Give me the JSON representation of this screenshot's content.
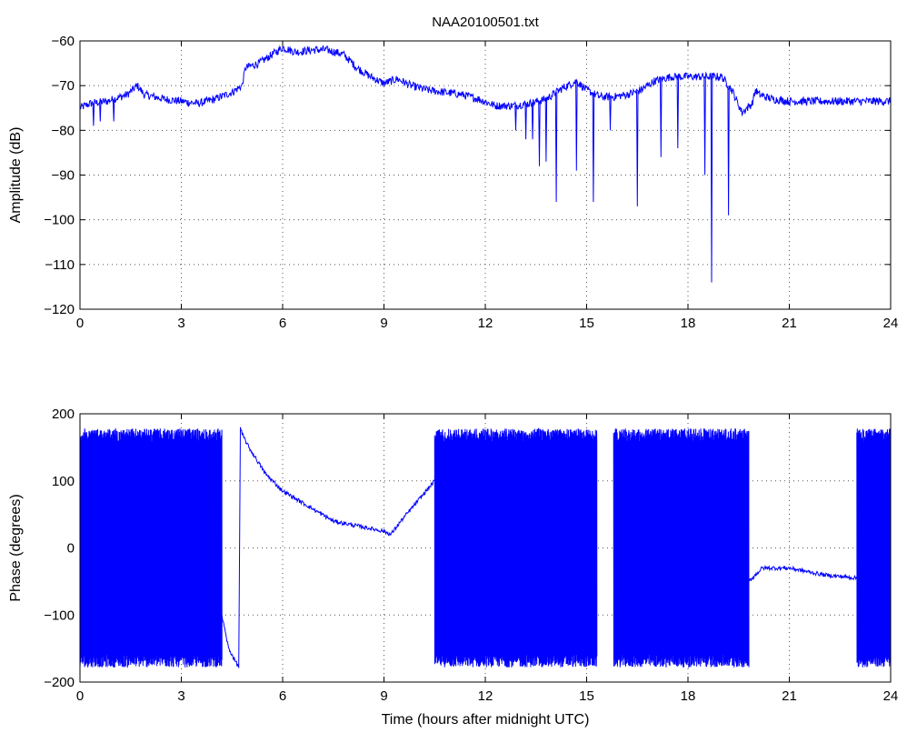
{
  "chart_data": [
    {
      "type": "line",
      "title": "NAA20100501.txt",
      "xlabel": "",
      "ylabel": "Amplitude (dB)",
      "xlim": [
        0,
        24
      ],
      "ylim": [
        -120,
        -60
      ],
      "xticks": [
        "0",
        "3",
        "6",
        "9",
        "12",
        "15",
        "18",
        "21",
        "24"
      ],
      "yticks": [
        "-120",
        "-110",
        "-100",
        "-90",
        "-80",
        "-70",
        "-60"
      ],
      "grid": true,
      "line_color": "#0000ff",
      "series": [
        {
          "name": "",
          "x": [
            0.0,
            0.3,
            0.8,
            1.4,
            1.7,
            1.9,
            2.5,
            3.0,
            3.5,
            4.0,
            4.5,
            4.8,
            4.9,
            5.3,
            5.7,
            6.0,
            6.4,
            6.9,
            7.3,
            7.8,
            8.2,
            8.6,
            9.0,
            9.4,
            9.8,
            10.3,
            10.8,
            11.3,
            11.8,
            12.3,
            12.8,
            13.3,
            13.8,
            14.3,
            14.7,
            15.0,
            15.4,
            15.8,
            16.2,
            16.6,
            17.0,
            17.5,
            18.0,
            18.5,
            19.0,
            19.3,
            19.6,
            19.9,
            20.0,
            20.1,
            20.5,
            21.0,
            22.0,
            23.0,
            24.0
          ],
          "y": [
            -75,
            -74,
            -73.5,
            -72,
            -70,
            -72,
            -73,
            -73.5,
            -74,
            -73,
            -71.5,
            -70,
            -66,
            -65,
            -63,
            -61.5,
            -62.5,
            -62,
            -62,
            -63,
            -66,
            -68,
            -69.5,
            -68.5,
            -70,
            -71,
            -71.5,
            -72,
            -73,
            -74.5,
            -74.5,
            -74,
            -73,
            -70.5,
            -69,
            -71,
            -72.5,
            -72.5,
            -72,
            -71,
            -69,
            -68,
            -68,
            -68,
            -68,
            -71,
            -76,
            -74,
            -71,
            -72,
            -73,
            -73.5,
            -73.5,
            -73.5,
            -73.5
          ]
        }
      ],
      "spikes": [
        {
          "x": 0.4,
          "y": -79
        },
        {
          "x": 0.6,
          "y": -78
        },
        {
          "x": 1.0,
          "y": -78
        },
        {
          "x": 12.9,
          "y": -80
        },
        {
          "x": 13.2,
          "y": -82
        },
        {
          "x": 13.4,
          "y": -82
        },
        {
          "x": 13.6,
          "y": -88
        },
        {
          "x": 13.8,
          "y": -87
        },
        {
          "x": 14.1,
          "y": -96
        },
        {
          "x": 14.7,
          "y": -89
        },
        {
          "x": 15.2,
          "y": -96
        },
        {
          "x": 15.7,
          "y": -80
        },
        {
          "x": 16.5,
          "y": -97
        },
        {
          "x": 17.2,
          "y": -86
        },
        {
          "x": 17.7,
          "y": -84
        },
        {
          "x": 18.5,
          "y": -90
        },
        {
          "x": 18.7,
          "y": -114
        },
        {
          "x": 19.2,
          "y": -99
        }
      ]
    },
    {
      "type": "line",
      "title": "",
      "xlabel": "Time (hours after midnight UTC)",
      "ylabel": "Phase (degrees)",
      "xlim": [
        0,
        24
      ],
      "ylim": [
        -200,
        200
      ],
      "xticks": [
        "0",
        "3",
        "6",
        "9",
        "12",
        "15",
        "18",
        "21",
        "24"
      ],
      "yticks": [
        "-200",
        "-100",
        "0",
        "100",
        "200"
      ],
      "grid": true,
      "line_color": "#0000ff",
      "wrapping_segments": [
        {
          "x0": 0.0,
          "x1": 4.2,
          "ymin": -178,
          "ymax": 178
        },
        {
          "x0": 10.5,
          "x1": 15.3,
          "ymin": -178,
          "ymax": 178
        },
        {
          "x0": 15.8,
          "x1": 19.8,
          "ymin": -178,
          "ymax": 178
        },
        {
          "x0": 23.0,
          "x1": 24.0,
          "ymin": -178,
          "ymax": 178
        }
      ],
      "series": [
        {
          "name": "",
          "x": [
            4.2,
            4.4,
            4.7,
            4.75,
            4.8,
            5.0,
            5.5,
            6.0,
            6.5,
            7.0,
            7.5,
            8.0,
            8.5,
            9.0,
            9.2,
            9.5,
            10.0,
            10.5
          ],
          "y": [
            -100,
            -150,
            -178,
            178,
            170,
            150,
            110,
            85,
            70,
            55,
            40,
            35,
            30,
            25,
            20,
            40,
            70,
            100
          ]
        },
        {
          "name": "",
          "x": [
            19.8,
            20.2,
            21.0,
            22.0,
            23.0
          ],
          "y": [
            -50,
            -30,
            -30,
            -40,
            -45
          ]
        }
      ]
    }
  ]
}
